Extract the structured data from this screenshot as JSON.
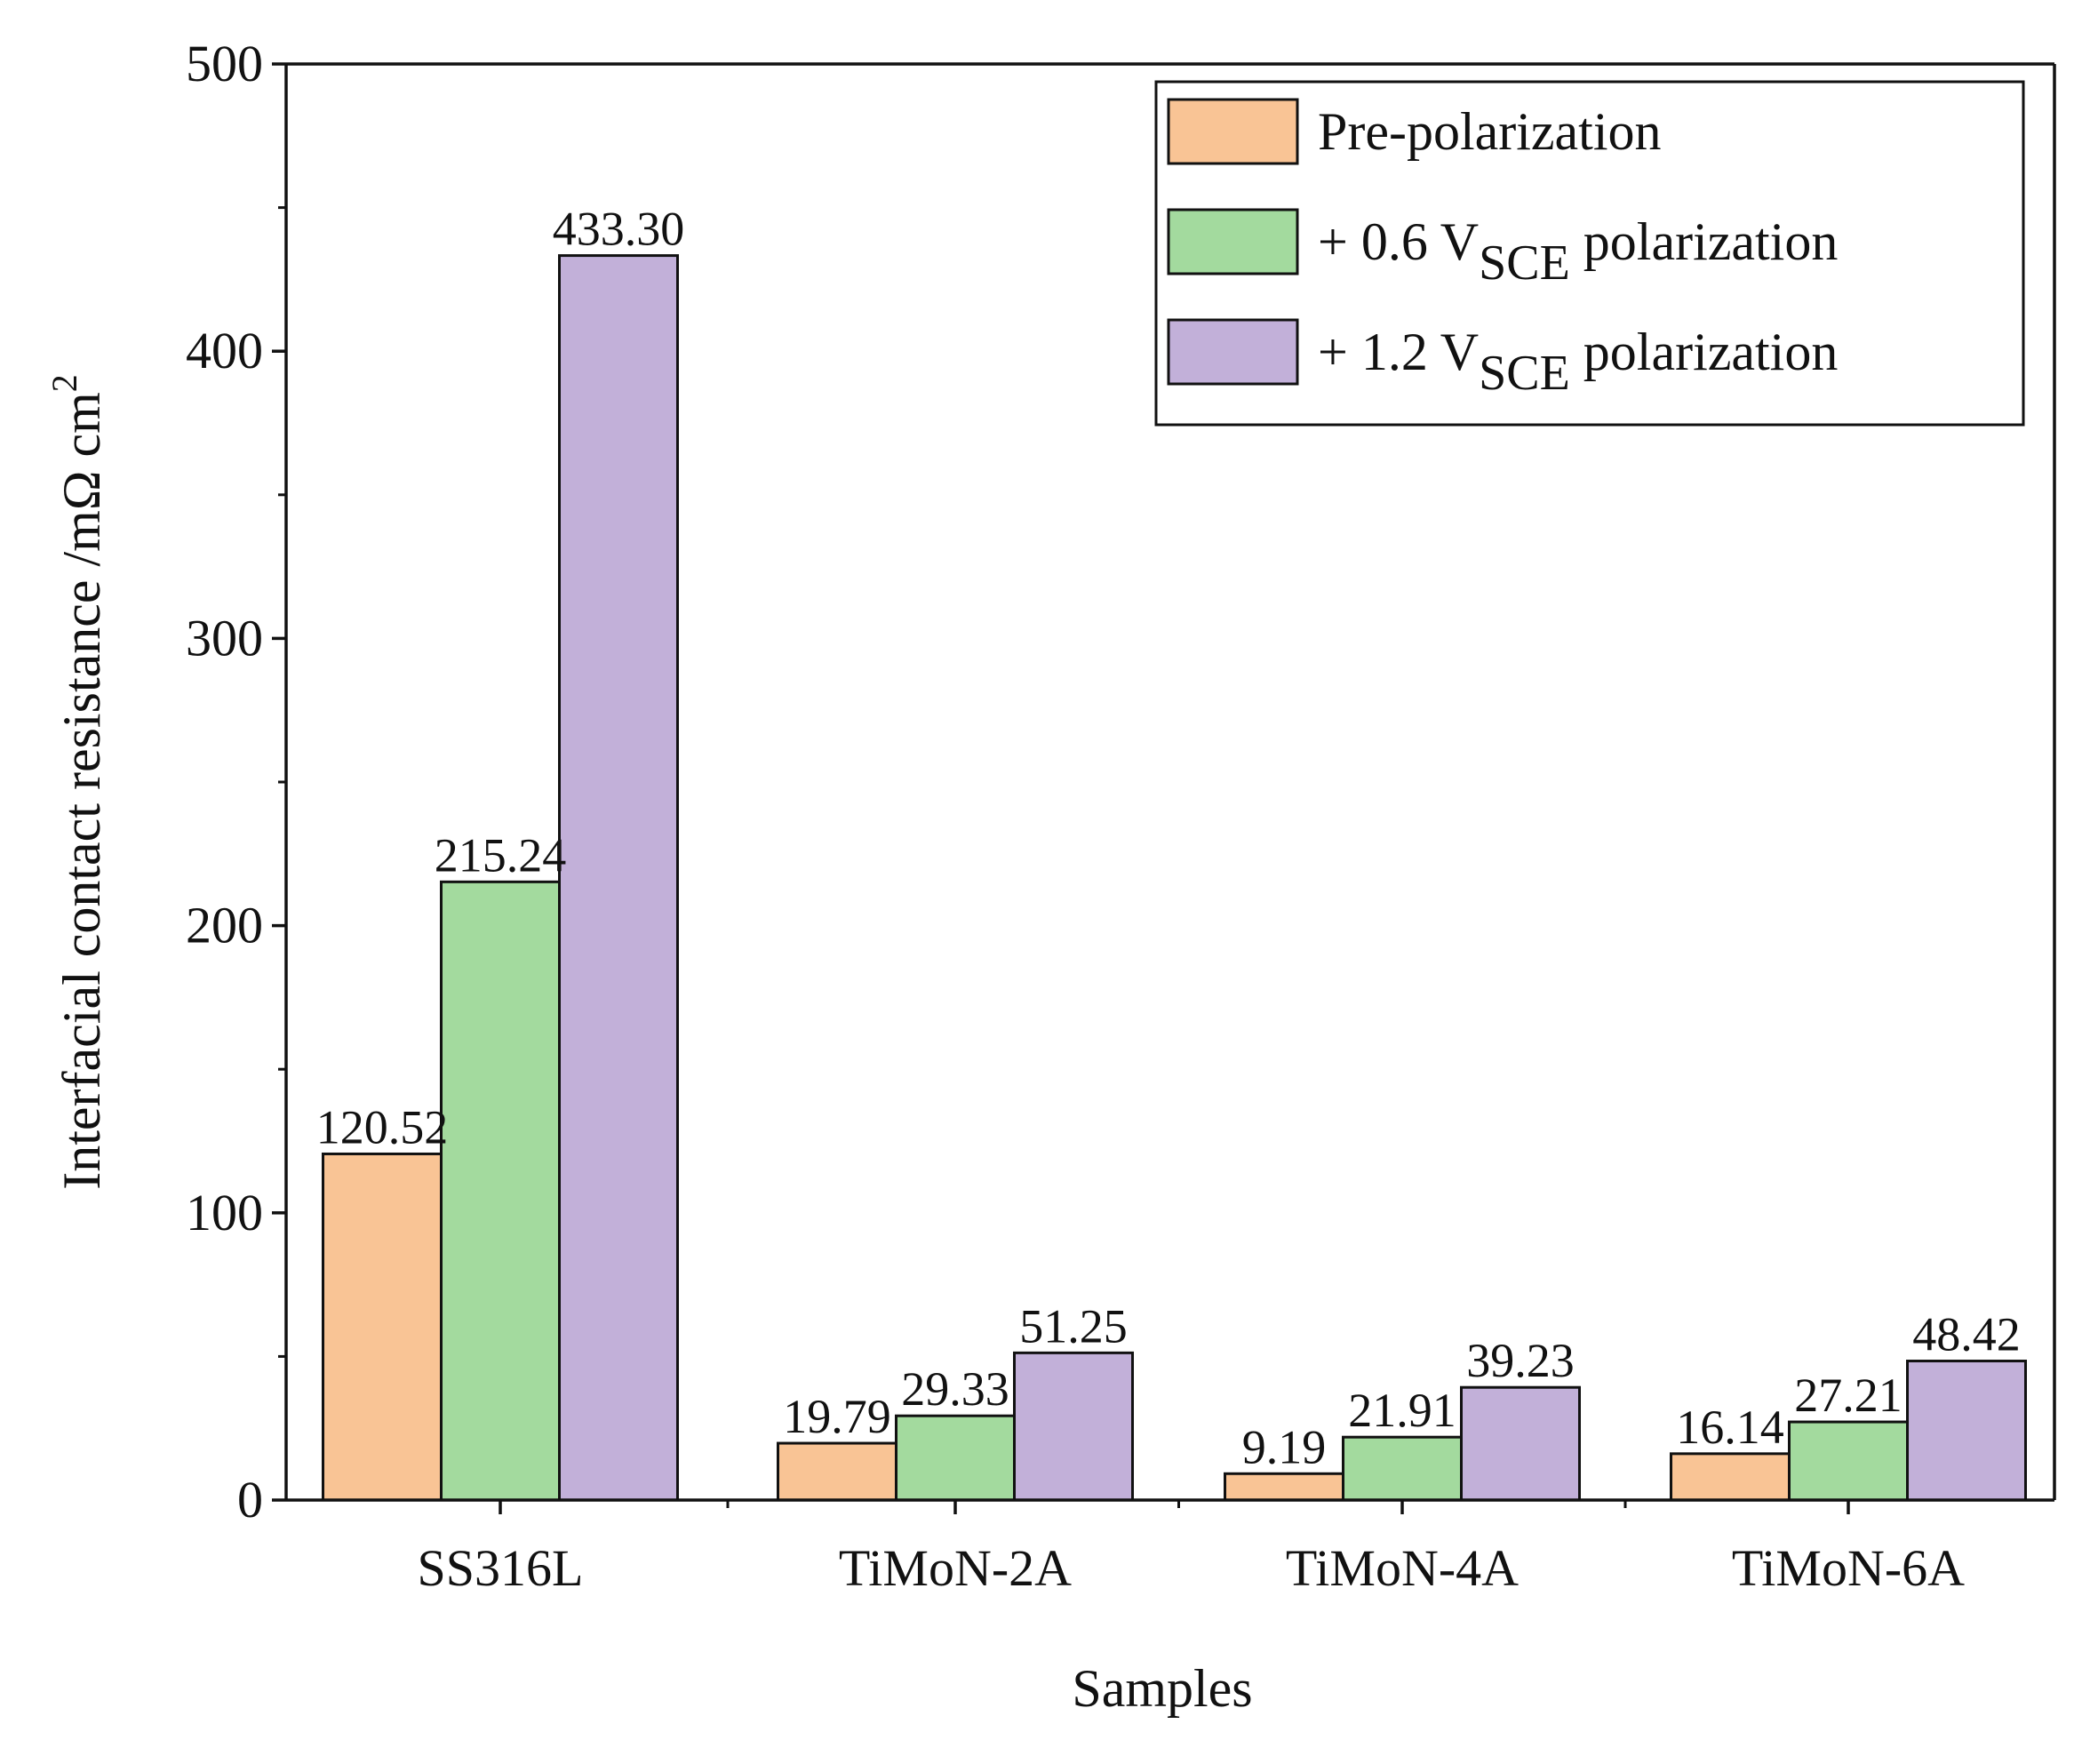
{
  "chart_data": {
    "type": "bar",
    "title": "",
    "xlabel": "Samples",
    "ylabel": {
      "main": "Interfacial contact resistance /mΩ cm",
      "superscript": "2"
    },
    "ylim": [
      0,
      500
    ],
    "yticks": [
      0,
      100,
      200,
      300,
      400,
      500
    ],
    "grid": false,
    "legend_position": "top-right",
    "categories": [
      "SS316L",
      "TiMoN-2A",
      "TiMoN-4A",
      "TiMoN-6A"
    ],
    "series": [
      {
        "name": "Pre-polarization",
        "legend": {
          "prefix": "Pre-polarization",
          "sub": "",
          "suffix": ""
        },
        "color": "#F9C495",
        "values": [
          120.52,
          19.79,
          9.19,
          16.14
        ],
        "labels": [
          "120.52",
          "19.79",
          "9.19",
          "16.14"
        ]
      },
      {
        "name": "+ 0.6 V_SCE polarization",
        "legend": {
          "prefix": "+ 0.6  V",
          "sub": "SCE",
          "suffix": " polarization"
        },
        "color": "#A3DA9E",
        "values": [
          215.24,
          29.33,
          21.91,
          27.21
        ],
        "labels": [
          "215.24",
          "29.33",
          "21.91",
          "27.21"
        ]
      },
      {
        "name": "+ 1.2 V_SCE polarization",
        "legend": {
          "prefix": "+ 1.2  V",
          "sub": "SCE",
          "suffix": " polarization"
        },
        "color": "#C2B0D9",
        "values": [
          433.3,
          51.25,
          39.23,
          48.42
        ],
        "labels": [
          "433.30",
          "51.25",
          "39.23",
          "48.42"
        ]
      }
    ]
  }
}
